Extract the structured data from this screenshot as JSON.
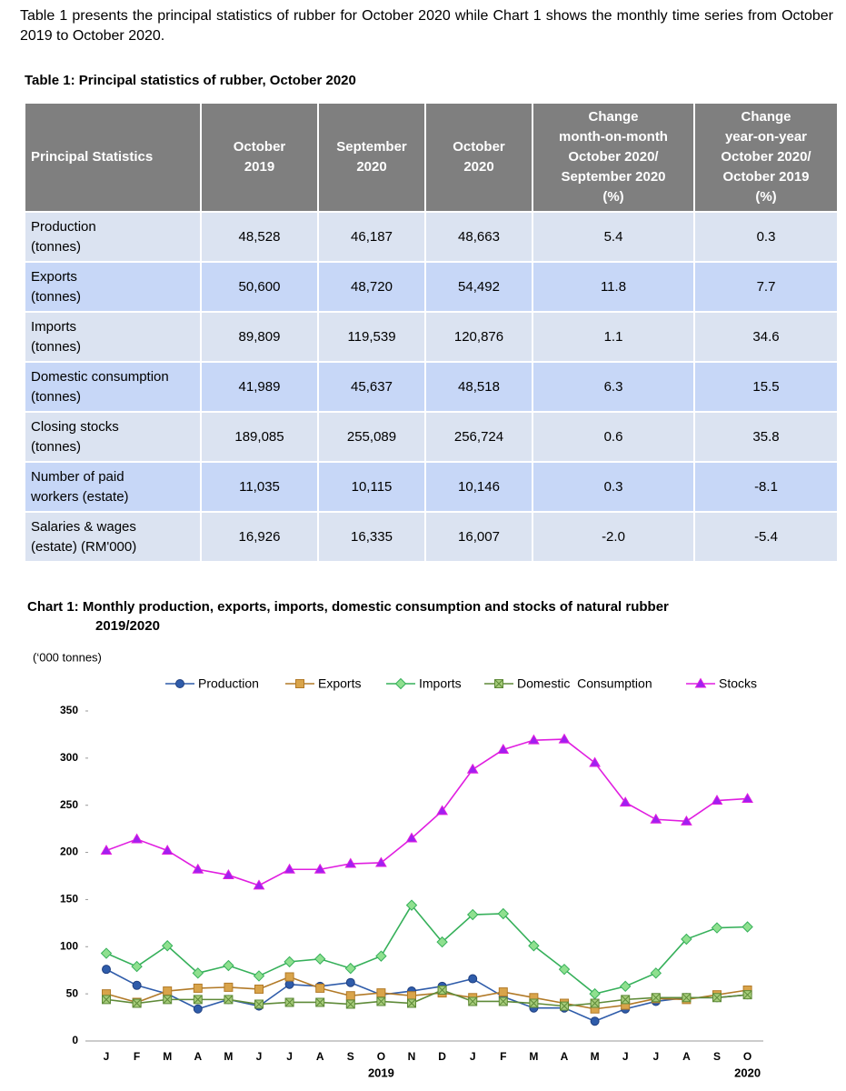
{
  "intro": "Table 1 presents the principal statistics of rubber for October 2020 while Chart 1 shows the monthly time series from October 2019 to October 2020.",
  "table": {
    "title": "Table 1: Principal statistics of rubber, October 2020",
    "header": [
      "Principal Statistics",
      "October\n2019",
      "September\n2020",
      "October\n2020",
      "Change\nmonth-on-month\nOctober 2020/\nSeptember 2020\n(%)",
      "Change\nyear-on-year\nOctober 2020/\nOctober 2019\n(%)"
    ],
    "rows": [
      [
        "Production\n(tonnes)",
        "48,528",
        "46,187",
        "48,663",
        "5.4",
        "0.3"
      ],
      [
        "Exports\n(tonnes)",
        "50,600",
        "48,720",
        "54,492",
        "11.8",
        "7.7"
      ],
      [
        "Imports\n(tonnes)",
        "89,809",
        "119,539",
        "120,876",
        "1.1",
        "34.6"
      ],
      [
        "Domestic consumption\n(tonnes)",
        "41,989",
        "45,637",
        "48,518",
        "6.3",
        "15.5"
      ],
      [
        "Closing stocks\n(tonnes)",
        "189,085",
        "255,089",
        "256,724",
        "0.6",
        "35.8"
      ],
      [
        "Number of paid\nworkers (estate)",
        "11,035",
        "10,115",
        "10,146",
        "0.3",
        "-8.1"
      ],
      [
        "Salaries & wages\n(estate) (RM'000)",
        "16,926",
        "16,335",
        "16,007",
        "-2.0",
        "-5.4"
      ]
    ]
  },
  "chart_data": {
    "type": "line",
    "title": "Chart 1: Monthly production, exports, imports, domestic consumption and stocks of natural rubber\n2019/2020",
    "y_label": "(‘000 tonnes)",
    "categories": [
      "J",
      "F",
      "M",
      "A",
      "M",
      "J",
      "J",
      "A",
      "S",
      "O",
      "N",
      "D",
      "J",
      "F",
      "M",
      "A",
      "M",
      "J",
      "J",
      "A",
      "S",
      "O"
    ],
    "x_group_labels": [
      "2019",
      "2020"
    ],
    "ylim": [
      0,
      350
    ],
    "yticks": [
      0,
      50,
      100,
      150,
      200,
      250,
      300,
      350
    ],
    "grid": false,
    "series": [
      {
        "name": "Production",
        "color": "#2f5caa",
        "marker": "circle",
        "values": [
          76,
          59,
          50,
          34,
          44,
          37,
          60,
          58,
          62,
          49,
          53,
          58,
          66,
          47,
          35,
          35,
          21,
          34,
          42,
          46,
          46,
          49
        ]
      },
      {
        "name": "Exports",
        "color": "#b27a28",
        "marker": "square",
        "values": [
          50,
          41,
          53,
          56,
          57,
          55,
          68,
          56,
          48,
          51,
          48,
          51,
          46,
          52,
          46,
          40,
          34,
          38,
          45,
          44,
          49,
          54
        ]
      },
      {
        "name": "Imports",
        "color": "#36b05a",
        "marker": "diamond",
        "values": [
          93,
          79,
          101,
          72,
          80,
          69,
          84,
          87,
          77,
          90,
          144,
          105,
          134,
          135,
          101,
          76,
          50,
          58,
          72,
          108,
          120,
          121
        ]
      },
      {
        "name": "Domestic  Consumption",
        "color": "#5e8a38",
        "marker": "xsquare",
        "values": [
          44,
          40,
          44,
          44,
          44,
          39,
          41,
          41,
          39,
          42,
          40,
          54,
          42,
          42,
          40,
          37,
          40,
          44,
          46,
          46,
          46,
          49
        ]
      },
      {
        "name": "Stocks",
        "color": "#e01ee0",
        "marker": "triangle",
        "values": [
          202,
          214,
          202,
          182,
          176,
          165,
          182,
          182,
          188,
          189,
          215,
          244,
          288,
          309,
          319,
          320,
          295,
          253,
          235,
          233,
          255,
          257
        ]
      }
    ]
  }
}
